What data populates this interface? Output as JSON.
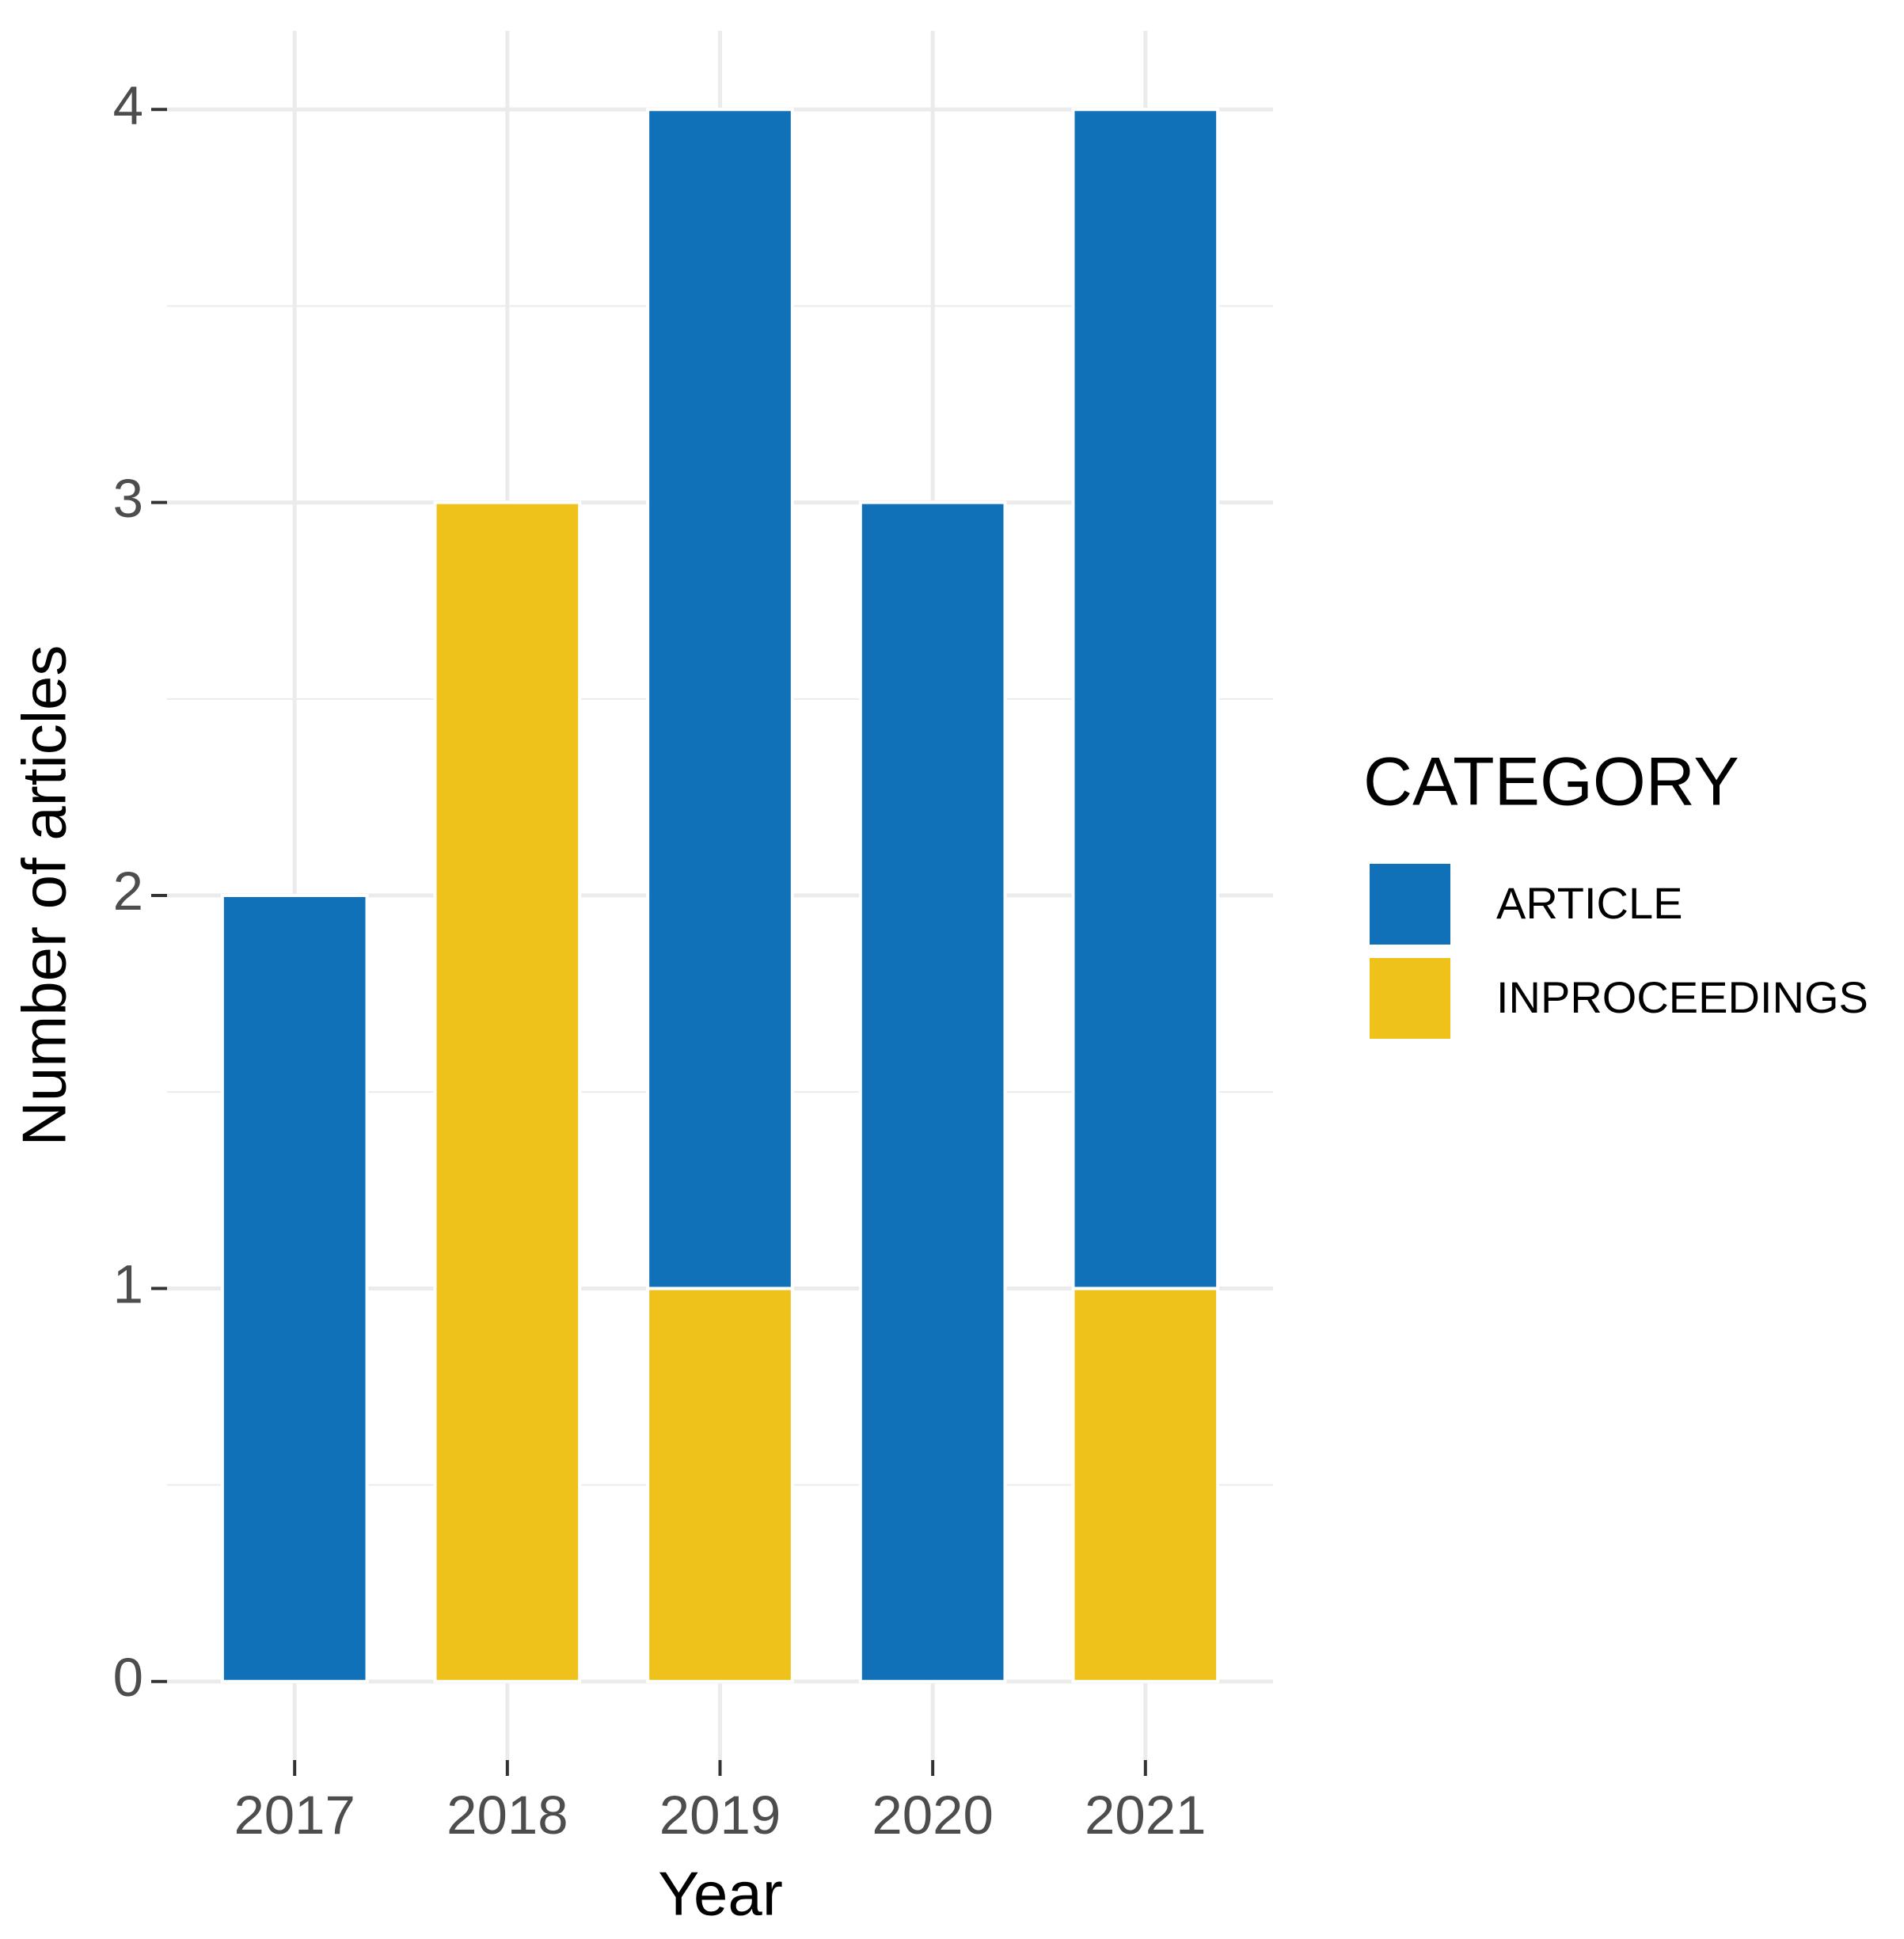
{
  "chart_data": {
    "type": "stacked_bar",
    "x_label": "Year",
    "y_label": "Number of articles",
    "categories": [
      "2017",
      "2018",
      "2019",
      "2020",
      "2021"
    ],
    "series": [
      {
        "name": "ARTICLE",
        "color": "#1071b8",
        "values": [
          2,
          0,
          3,
          3,
          3
        ]
      },
      {
        "name": "INPROCEEDINGS",
        "color": "#eec21b",
        "values": [
          0,
          3,
          1,
          0,
          1
        ]
      }
    ],
    "legend_title": "CATEGORY",
    "legend_position": "right",
    "ylim": [
      -0.2,
      4.2
    ],
    "yticks": [
      0,
      1,
      2,
      3,
      4
    ],
    "yminor": [
      0.5,
      1.5,
      2.5,
      3.5
    ],
    "grid": true
  }
}
